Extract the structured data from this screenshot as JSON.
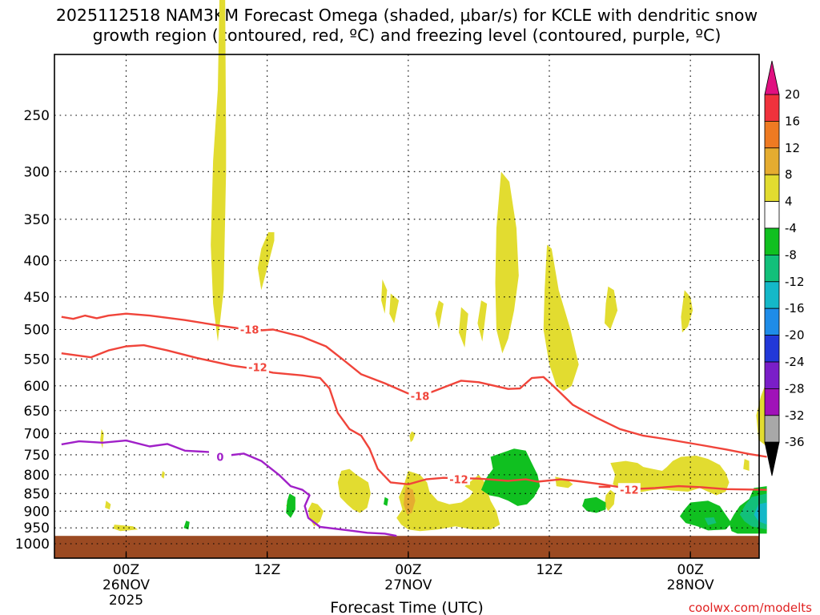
{
  "chart_data": {
    "type": "time-height",
    "title_line1": "2025112518 NAM3KM Forecast Omega (shaded, μbar/s) for KCLE with dendritic snow",
    "title_line2": "growth region (contoured, red, ºC) and freezing level (contoured, purple, ºC)",
    "xlabel": "Forecast Time (UTC)",
    "credit": "coolwx.com/modelts",
    "xlim_hours": [
      -5.5,
      54.5
    ],
    "xticks": [
      {
        "h": 0,
        "labels": [
          "00Z",
          "26NOV",
          "2025"
        ]
      },
      {
        "h": 12,
        "labels": [
          "12Z"
        ]
      },
      {
        "h": 24,
        "labels": [
          "00Z",
          "27NOV"
        ]
      },
      {
        "h": 36,
        "labels": [
          "12Z"
        ]
      },
      {
        "h": 48,
        "labels": [
          "00Z",
          "28NOV"
        ]
      }
    ],
    "ylevels_hpa": [
      250,
      300,
      350,
      400,
      450,
      500,
      550,
      600,
      650,
      700,
      750,
      800,
      850,
      900,
      950,
      1000
    ],
    "ylim_hpa": [
      200,
      1015
    ],
    "ground_hpa": 975,
    "colorbar": {
      "ticks": [
        "20",
        "16",
        "12",
        "8",
        "4",
        "-4",
        "-8",
        "-12",
        "-16",
        "-20",
        "-24",
        "-28",
        "-32",
        "-36"
      ],
      "bands": [
        {
          "range": [
            16,
            20
          ],
          "color": "#f0323c"
        },
        {
          "range": [
            12,
            16
          ],
          "color": "#ee7a22"
        },
        {
          "range": [
            8,
            12
          ],
          "color": "#e5ac30"
        },
        {
          "range": [
            4,
            8
          ],
          "color": "#e2dc30"
        },
        {
          "range": [
            -4,
            4
          ],
          "color": "#ffffff"
        },
        {
          "range": [
            -8,
            -4
          ],
          "color": "#10c020"
        },
        {
          "range": [
            -12,
            -8
          ],
          "color": "#12c07a"
        },
        {
          "range": [
            -16,
            -12
          ],
          "color": "#14b8c8"
        },
        {
          "range": [
            -20,
            -16
          ],
          "color": "#1e8ce8"
        },
        {
          "range": [
            -24,
            -20
          ],
          "color": "#2238d8"
        },
        {
          "range": [
            -28,
            -24
          ],
          "color": "#7a1ec8"
        },
        {
          "range": [
            -32,
            -28
          ],
          "color": "#a012b8"
        },
        {
          "range": [
            -36,
            -32
          ],
          "color": "#a8a8a8"
        }
      ],
      "top_arrow_color": "#e01080",
      "bottom_arrow_color": "#000000"
    },
    "contours": [
      {
        "label": "-18",
        "color": "#f0443a",
        "label_at": [
          {
            "h": 10.5,
            "p": 500
          },
          {
            "h": 25,
            "p": 620
          }
        ],
        "points": [
          [
            -5.5,
            480
          ],
          [
            -4.5,
            483
          ],
          [
            -3.5,
            478
          ],
          [
            -2.5,
            482
          ],
          [
            -1.5,
            478
          ],
          [
            0,
            475
          ],
          [
            2,
            478
          ],
          [
            5,
            485
          ],
          [
            8,
            494
          ],
          [
            11,
            502
          ],
          [
            12.5,
            500
          ],
          [
            15,
            512
          ],
          [
            17,
            528
          ],
          [
            18.5,
            552
          ],
          [
            20,
            578
          ],
          [
            22,
            595
          ],
          [
            24,
            615
          ],
          [
            26,
            612
          ],
          [
            28.5,
            590
          ],
          [
            30,
            593
          ],
          [
            32.5,
            606
          ],
          [
            33.5,
            605
          ],
          [
            34.5,
            585
          ],
          [
            35.5,
            583
          ],
          [
            36,
            593
          ],
          [
            37,
            615
          ],
          [
            38,
            638
          ],
          [
            40,
            665
          ],
          [
            42,
            690
          ],
          [
            44,
            705
          ],
          [
            46,
            713
          ],
          [
            49,
            727
          ],
          [
            51,
            737
          ],
          [
            53,
            748
          ],
          [
            54.5,
            755
          ]
        ]
      },
      {
        "label": "-12",
        "color": "#f0443a",
        "label_at": [
          {
            "h": 11.2,
            "p": 565
          },
          {
            "h": 28.3,
            "p": 812
          },
          {
            "h": 42.8,
            "p": 839
          }
        ],
        "points": [
          [
            -5.5,
            540
          ],
          [
            -3,
            547
          ],
          [
            -1.5,
            535
          ],
          [
            0,
            528
          ],
          [
            1.5,
            526
          ],
          [
            3.5,
            535
          ],
          [
            6,
            548
          ],
          [
            9,
            562
          ],
          [
            11,
            568
          ],
          [
            12.5,
            575
          ],
          [
            15,
            580
          ],
          [
            16.5,
            585
          ],
          [
            17.3,
            605
          ],
          [
            18,
            655
          ],
          [
            19,
            690
          ],
          [
            20,
            705
          ],
          [
            20.7,
            735
          ],
          [
            21.4,
            785
          ],
          [
            22.5,
            820
          ],
          [
            24,
            825
          ],
          [
            25.5,
            812
          ],
          [
            27,
            808
          ],
          [
            30,
            810
          ],
          [
            32.5,
            816
          ],
          [
            34,
            812
          ],
          [
            35,
            818
          ],
          [
            37,
            812
          ],
          [
            38.5,
            817
          ],
          [
            40.5,
            825
          ],
          [
            43,
            838
          ],
          [
            45,
            835
          ],
          [
            47,
            830
          ],
          [
            49,
            833
          ],
          [
            51,
            838
          ],
          [
            54.5,
            840
          ]
        ]
      },
      {
        "label": "0",
        "color": "#a020c8",
        "label_at": [
          {
            "h": 8,
            "p": 755
          }
        ],
        "points": [
          [
            -5.5,
            725
          ],
          [
            -4,
            718
          ],
          [
            -2,
            721
          ],
          [
            0,
            716
          ],
          [
            2,
            730
          ],
          [
            3.5,
            724
          ],
          [
            5,
            740
          ],
          [
            7,
            743
          ],
          [
            8.5,
            752
          ],
          [
            10,
            747
          ],
          [
            11.5,
            765
          ],
          [
            13,
            800
          ],
          [
            14,
            830
          ],
          [
            15,
            840
          ],
          [
            15.6,
            855
          ],
          [
            15.2,
            885
          ],
          [
            15.5,
            920
          ],
          [
            16.5,
            947
          ],
          [
            19,
            958
          ],
          [
            20.5,
            965
          ],
          [
            22,
            968
          ],
          [
            23,
            975
          ]
        ]
      }
    ],
    "omega_regions": [
      {
        "bin": "4 to 8",
        "color": "#e2dc30",
        "note": "rising motion (yellow)"
      },
      {
        "bin": "-8 to -4",
        "color": "#10c020",
        "note": "sinking (green)"
      },
      {
        "bin": "-12 to -8",
        "color": "#12c07a"
      },
      {
        "bin": "-16 to -12",
        "color": "#14b8c8"
      },
      {
        "bin": "8 to 12",
        "color": "#e5ac30"
      }
    ]
  }
}
